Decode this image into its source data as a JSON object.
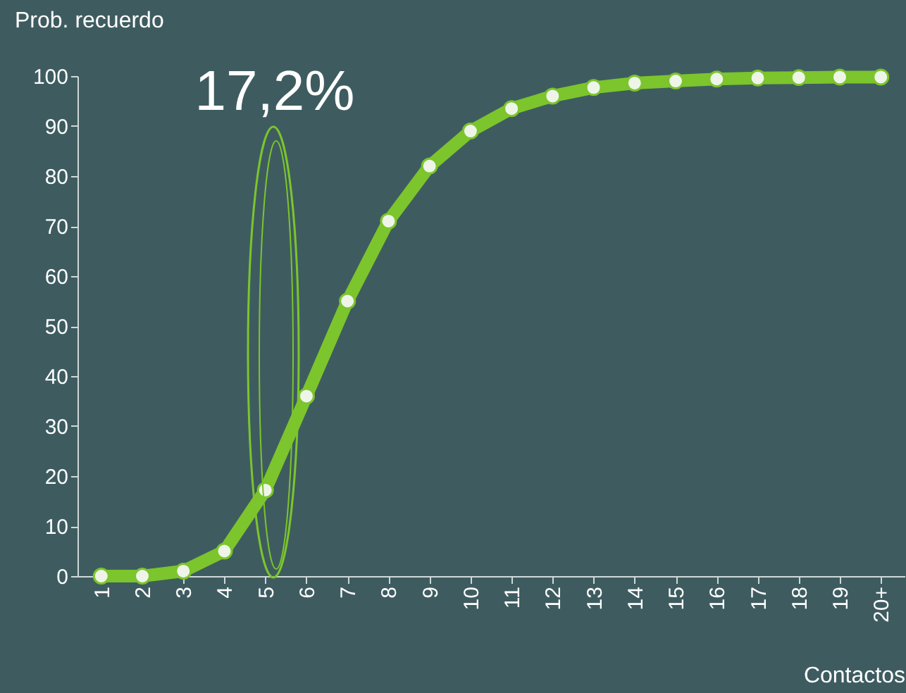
{
  "chart_data": {
    "type": "line",
    "xlabel": "Contactos",
    "ylabel": "Prob. recuerdo",
    "categories": [
      "1",
      "2",
      "3",
      "4",
      "5",
      "6",
      "7",
      "8",
      "9",
      "10",
      "11",
      "12",
      "13",
      "14",
      "15",
      "16",
      "17",
      "18",
      "19",
      "20+"
    ],
    "series": [
      {
        "color": "#7cc52c",
        "values": [
          0,
          0,
          1,
          5,
          17.2,
          36,
          55,
          71,
          82,
          89,
          93.5,
          96,
          97.7,
          98.6,
          99,
          99.4,
          99.6,
          99.7,
          99.8,
          99.8
        ]
      }
    ],
    "ylim": [
      0,
      100
    ],
    "yticks": [
      0,
      10,
      20,
      30,
      40,
      50,
      60,
      70,
      80,
      90,
      100
    ],
    "annotations": [
      "17,2%"
    ],
    "marker": "circle",
    "line_style": "solid",
    "grid": false
  }
}
